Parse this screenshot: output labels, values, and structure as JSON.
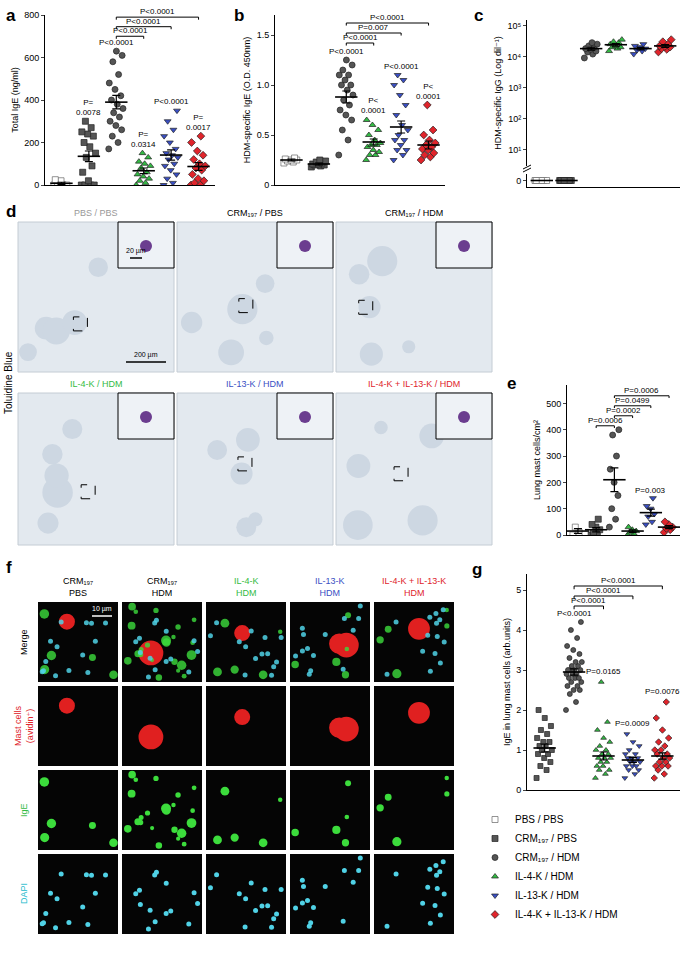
{
  "chart_data": [
    {
      "panel": "a",
      "type": "strip",
      "y_label": "Total IgE (ng/ml)",
      "ylim": [
        0,
        800
      ],
      "yticks": [
        0,
        200,
        400,
        600,
        800
      ],
      "tick_labels": "y",
      "legend": "bottom right",
      "series": [
        {
          "name": "PBS / PBS",
          "color": "#ffffff",
          "marker": "square",
          "values": [
            0,
            0,
            0,
            0,
            20,
            25
          ],
          "mean": 8,
          "sem": 5
        },
        {
          "name": "CRM₁₉₇ / PBS",
          "color": "#555555",
          "marker": "square",
          "values": [
            0,
            0,
            0,
            0,
            20,
            60,
            90,
            130,
            150,
            180,
            200,
            230,
            240,
            250,
            270,
            300
          ],
          "mean": 135,
          "sem": 25
        },
        {
          "name": "CRM₁₉₇ / HDM",
          "color": "#555555",
          "marker": "circle",
          "values": [
            170,
            200,
            230,
            260,
            280,
            300,
            320,
            340,
            360,
            380,
            400,
            420,
            450,
            480,
            520,
            580,
            610,
            630
          ],
          "mean": 390,
          "sem": 32
        },
        {
          "name": "IL-4-K / HDM",
          "color": "#33bb44",
          "marker": "triangle-up",
          "values": [
            0,
            10,
            20,
            30,
            40,
            50,
            60,
            80,
            90,
            100,
            110,
            130,
            150
          ],
          "mean": 67,
          "sem": 13
        },
        {
          "name": "IL-13-K / HDM",
          "color": "#3a4fc4",
          "marker": "triangle-down",
          "values": [
            0,
            10,
            30,
            50,
            70,
            90,
            100,
            120,
            130,
            140,
            150,
            170,
            200,
            230,
            260,
            300,
            350
          ],
          "mean": 141,
          "sem": 24
        },
        {
          "name": "IL-4-K + IL-13-K / HDM",
          "color": "#e0242b",
          "marker": "diamond",
          "values": [
            0,
            0,
            10,
            20,
            30,
            50,
            70,
            80,
            90,
            100,
            120,
            140,
            160,
            200,
            230
          ],
          "mean": 87,
          "sem": 18
        }
      ],
      "annotations": [
        {
          "text": "P=\n0.0078",
          "x": 1,
          "y": 310
        },
        {
          "text": "P<0.0001",
          "x": 2,
          "y": 640
        },
        {
          "text": "P=\n0.0314",
          "x": 3,
          "y": 160
        },
        {
          "text": "P<0.0001",
          "x": 4,
          "y": 360
        },
        {
          "text": "P=\n0.0017",
          "x": 5,
          "y": 240
        }
      ],
      "brackets": [
        {
          "x0": 2,
          "x1": 3,
          "y": 700,
          "text": "P<0.0001"
        },
        {
          "x0": 2,
          "x1": 4,
          "y": 745,
          "text": "P<0.0001"
        },
        {
          "x0": 2,
          "x1": 5,
          "y": 790,
          "text": "P<0.0001"
        }
      ]
    },
    {
      "panel": "b",
      "type": "strip",
      "y_label": "HDM-specific IgE (O.D. 450nm)",
      "ylim": [
        0,
        1.7
      ],
      "yticks": [
        0,
        0.5,
        {
          "value": 1,
          "label": "1.0"
        },
        1.5
      ],
      "tick_labels": "y",
      "series": [
        {
          "name": "PBS / PBS",
          "color": "#ffffff",
          "marker": "square",
          "values": [
            0.22,
            0.23,
            0.24,
            0.25,
            0.25,
            0.26,
            0.27
          ],
          "mean": 0.25,
          "sem": 0.01
        },
        {
          "name": "CRM₁₉₇ / PBS",
          "color": "#555555",
          "marker": "square",
          "values": [
            0.18,
            0.19,
            0.2,
            0.2,
            0.21,
            0.21,
            0.22,
            0.23,
            0.24,
            0.25
          ],
          "mean": 0.21,
          "sem": 0.01
        },
        {
          "name": "CRM₁₉₇ / HDM",
          "color": "#555555",
          "marker": "circle",
          "values": [
            0.3,
            0.45,
            0.55,
            0.65,
            0.7,
            0.75,
            0.8,
            0.85,
            0.9,
            0.95,
            1.0,
            1.0,
            1.05,
            1.1,
            1.1,
            1.15,
            1.2,
            1.25
          ],
          "mean": 0.88,
          "sem": 0.06
        },
        {
          "name": "IL-4-K / HDM",
          "color": "#33bb44",
          "marker": "triangle-up",
          "values": [
            0.25,
            0.3,
            0.3,
            0.33,
            0.35,
            0.38,
            0.4,
            0.4,
            0.42,
            0.45,
            0.5,
            0.55,
            0.6,
            0.65
          ],
          "mean": 0.43,
          "sem": 0.03
        },
        {
          "name": "IL-13-K / HDM",
          "color": "#3a4fc4",
          "marker": "triangle-down",
          "values": [
            0.25,
            0.3,
            0.35,
            0.35,
            0.4,
            0.45,
            0.45,
            0.5,
            0.55,
            0.6,
            0.7,
            0.8,
            0.9,
            1.0,
            1.05,
            1.1
          ],
          "mean": 0.58,
          "sem": 0.06
        },
        {
          "name": "IL-4-K + IL-13-K / HDM",
          "color": "#e0242b",
          "marker": "diamond",
          "values": [
            0.25,
            0.28,
            0.3,
            0.32,
            0.35,
            0.36,
            0.38,
            0.4,
            0.42,
            0.45,
            0.5,
            0.55,
            0.8
          ],
          "mean": 0.4,
          "sem": 0.04
        }
      ],
      "annotations": [
        {
          "text": "P<0.0001",
          "x": 2,
          "y": 1.27
        },
        {
          "text": "P<\n0.0001",
          "x": 3,
          "y": 0.68
        },
        {
          "text": "P<0.0001",
          "x": 4,
          "y": 1.12
        },
        {
          "text": "P<\n0.0001",
          "x": 5,
          "y": 0.82
        }
      ],
      "brackets": [
        {
          "x0": 2,
          "x1": 3,
          "y": 1.42,
          "text": "P<0.0001"
        },
        {
          "x0": 2,
          "x1": 4,
          "y": 1.52,
          "text": "P=0.007"
        },
        {
          "x0": 2,
          "x1": 5,
          "y": 1.62,
          "text": "P<0.0001"
        }
      ]
    },
    {
      "panel": "c",
      "type": "strip",
      "y_label": "HDM-specific IgG (Log dil⁻¹)",
      "log": "y",
      "ylim": [
        3,
        150000
      ],
      "yticks": [
        {
          "value": 10,
          "label": "10¹"
        },
        {
          "value": 100,
          "label": "10²"
        },
        {
          "value": 1000,
          "label": "10³"
        },
        {
          "value": 10000,
          "label": "10⁴"
        },
        {
          "value": 100000,
          "label": "10⁵"
        }
      ],
      "y2lim": [
        -1,
        1
      ],
      "y2ticks": [
        0
      ],
      "tick_labels": "y",
      "series": [
        {
          "name": "PBS / PBS",
          "color": "#ffffff",
          "marker": "square",
          "axis": "y2",
          "values": [
            0,
            0,
            0,
            0,
            0,
            0
          ],
          "mean": 0,
          "sem": 0
        },
        {
          "name": "CRM₁₉₇ / PBS",
          "color": "#555555",
          "marker": "square",
          "axis": "y2",
          "values": [
            0,
            0,
            0,
            0,
            0,
            0,
            0,
            0
          ],
          "mean": 0,
          "sem": 0
        },
        {
          "name": "CRM₁₉₇ / HDM",
          "color": "#555555",
          "marker": "circle",
          "values": [
            9000,
            12000,
            14000,
            15000,
            17000,
            18000,
            20000,
            22000,
            25000,
            28000
          ],
          "mean": 18000,
          "sem": 1900
        },
        {
          "name": "IL-4-K / HDM",
          "color": "#33bb44",
          "marker": "triangle-up",
          "values": [
            15000,
            18000,
            20000,
            20000,
            22000,
            25000,
            28000,
            30000,
            35000
          ],
          "mean": 24000,
          "sem": 2200
        },
        {
          "name": "IL-13-K / HDM",
          "color": "#3a4fc4",
          "marker": "triangle-down",
          "values": [
            12000,
            15000,
            16000,
            18000,
            20000,
            22000,
            25000
          ],
          "mean": 18000,
          "sem": 1700
        },
        {
          "name": "IL-4-K + IL-13-K / HDM",
          "color": "#e0242b",
          "marker": "diamond",
          "values": [
            14000,
            17000,
            18000,
            20000,
            21000,
            22000,
            25000,
            30000,
            35000
          ],
          "mean": 22000,
          "sem": 2300
        }
      ]
    },
    {
      "panel": "e",
      "type": "strip",
      "y_label": "Lung mast cells/cm²",
      "ylim": [
        0,
        570
      ],
      "yticks": [
        0,
        100,
        200,
        300,
        400,
        500
      ],
      "tick_labels": "y",
      "series": [
        {
          "name": "PBS / PBS",
          "color": "#ffffff",
          "marker": "square",
          "values": [
            0,
            10,
            30
          ],
          "mean": 15,
          "sem": 9
        },
        {
          "name": "CRM₁₉₇ / PBS",
          "color": "#555555",
          "marker": "square",
          "values": [
            0,
            5,
            10,
            20,
            30,
            40,
            60
          ],
          "mean": 20,
          "sem": 8
        },
        {
          "name": "CRM₁₉₇ / HDM",
          "color": "#555555",
          "marker": "circle",
          "values": [
            30,
            60,
            100,
            150,
            200,
            250,
            300,
            380,
            400
          ],
          "mean": 210,
          "sem": 45
        },
        {
          "name": "IL-4-K / HDM",
          "color": "#33bb44",
          "marker": "triangle-up",
          "values": [
            0,
            5,
            10,
            15,
            20,
            30
          ],
          "mean": 15,
          "sem": 5
        },
        {
          "name": "IL-13-K / HDM",
          "color": "#3a4fc4",
          "marker": "triangle-down",
          "values": [
            40,
            50,
            70,
            80,
            100,
            110,
            140
          ],
          "mean": 85,
          "sem": 13
        },
        {
          "name": "IL-4-K + IL-13-K / HDM",
          "color": "#e0242b",
          "marker": "diamond",
          "values": [
            10,
            20,
            25,
            30,
            40,
            50
          ],
          "mean": 30,
          "sem": 6
        }
      ],
      "annotations": [
        {
          "text": "P=0.003",
          "x": 4,
          "y": 145
        }
      ],
      "brackets": [
        {
          "x0": 1,
          "x1": 2,
          "y": 415,
          "text": "P=0.0006"
        },
        {
          "x0": 2,
          "x1": 3,
          "y": 453,
          "text": "P=0.0002"
        },
        {
          "x0": 2,
          "x1": 4,
          "y": 491,
          "text": "P=0.0499"
        },
        {
          "x0": 2,
          "x1": 5,
          "y": 529,
          "text": "P=0.0006"
        }
      ]
    },
    {
      "panel": "g",
      "type": "strip",
      "y_label": "IgE in lung mast cells (arb.units)",
      "ylim": [
        0,
        5.4
      ],
      "yticks": [
        0,
        1,
        2,
        3,
        4,
        5
      ],
      "tick_labels": "y",
      "series": [
        {
          "name": "CRM₁₉₇ / PBS",
          "color": "#555555",
          "marker": "square",
          "values": [
            0.3,
            0.5,
            0.6,
            0.7,
            0.8,
            0.9,
            0.9,
            1.0,
            1.0,
            1.1,
            1.1,
            1.2,
            1.2,
            1.3,
            1.4,
            1.5,
            1.6,
            1.8,
            2.0
          ],
          "mean": 1.05,
          "sem": 0.1
        },
        {
          "name": "CRM₁₉₇ / HDM",
          "color": "#555555",
          "marker": "circle",
          "values": [
            2.0,
            2.2,
            2.4,
            2.5,
            2.5,
            2.6,
            2.6,
            2.7,
            2.7,
            2.8,
            2.8,
            2.8,
            2.9,
            2.9,
            2.9,
            3.0,
            3.0,
            3.0,
            3.0,
            3.1,
            3.1,
            3.2,
            3.2,
            3.3,
            3.4,
            3.5,
            3.6,
            3.8,
            4.0,
            4.2
          ],
          "mean": 2.95,
          "sem": 0.08
        },
        {
          "name": "IL-4-K / HDM",
          "color": "#33bb44",
          "marker": "triangle-up",
          "values": [
            0.3,
            0.4,
            0.5,
            0.5,
            0.6,
            0.6,
            0.7,
            0.7,
            0.8,
            0.8,
            0.8,
            0.9,
            0.9,
            1.0,
            1.0,
            1.1,
            1.2,
            1.3,
            1.5,
            1.7,
            2.7
          ],
          "mean": 0.85,
          "sem": 0.1
        },
        {
          "name": "IL-13-K / HDM",
          "color": "#3a4fc4",
          "marker": "triangle-down",
          "values": [
            0.3,
            0.4,
            0.5,
            0.5,
            0.6,
            0.6,
            0.6,
            0.7,
            0.7,
            0.7,
            0.8,
            0.8,
            0.8,
            0.9,
            0.9,
            1.0,
            1.1,
            1.2,
            1.4
          ],
          "mean": 0.75,
          "sem": 0.06
        },
        {
          "name": "IL-4-K + IL-13-K / HDM",
          "color": "#e0242b",
          "marker": "diamond",
          "values": [
            0.3,
            0.4,
            0.5,
            0.6,
            0.6,
            0.6,
            0.7,
            0.7,
            0.8,
            0.8,
            0.9,
            0.9,
            1.0,
            1.0,
            1.1,
            1.2,
            1.3,
            1.5,
            1.8,
            2.2
          ],
          "mean": 0.85,
          "sem": 0.08
        }
      ],
      "annotations": [
        {
          "text": "P<0.0001",
          "x": 1,
          "y": 4.25
        },
        {
          "text": "P=0.0165",
          "x": 2,
          "y": 2.8
        },
        {
          "text": "P=0.0009",
          "x": 3,
          "y": 1.5
        },
        {
          "text": "P=0.0076",
          "x": 4,
          "y": 2.3
        }
      ],
      "brackets": [
        {
          "x0": 1,
          "x1": 2,
          "y": 4.6,
          "text": "P<0.0001"
        },
        {
          "x0": 1,
          "x1": 3,
          "y": 4.85,
          "text": "P<0.0001"
        },
        {
          "x0": 1,
          "x1": 4,
          "y": 5.1,
          "text": "P<0.0001"
        }
      ]
    }
  ],
  "micrographs": {
    "d": {
      "panel": "d",
      "stain": "Toluidine Blue",
      "scale_bars": [
        "20 µm",
        "200 µm"
      ],
      "labels": [
        {
          "text": "PBS / PBS",
          "color": "#999999"
        },
        {
          "text": "CRM₁₉₇ / PBS",
          "color": "#000000"
        },
        {
          "text": "CRM₁₉₇ / HDM",
          "color": "#000000"
        },
        {
          "text": "IL-4-K / HDM",
          "color": "#33bb44"
        },
        {
          "text": "IL-13-K / HDM",
          "color": "#3a4fc4"
        },
        {
          "text": "IL-4-K + IL-13-K / HDM",
          "color": "#e0242b"
        }
      ]
    },
    "f": {
      "panel": "f",
      "scale_bar": "10 µm",
      "columns": [
        {
          "text": "CRM₁₉₇\nPBS",
          "color": "#000000"
        },
        {
          "text": "CRM₁₉₇\nHDM",
          "color": "#000000"
        },
        {
          "text": "IL-4-K\nHDM",
          "color": "#33bb44"
        },
        {
          "text": "IL-13-K\nHDM",
          "color": "#3a4fc4"
        },
        {
          "text": "IL-4-K + IL-13-K\nHDM",
          "color": "#e0242b"
        }
      ],
      "rows": [
        {
          "text": "Merge",
          "color": "#000000"
        },
        {
          "text": "Mast cells\n(avidin⁺)",
          "color": "#e0242b"
        },
        {
          "text": "IgE",
          "color": "#33bb44"
        },
        {
          "text": "DAPI",
          "color": "#22bbcc"
        }
      ]
    }
  }
}
